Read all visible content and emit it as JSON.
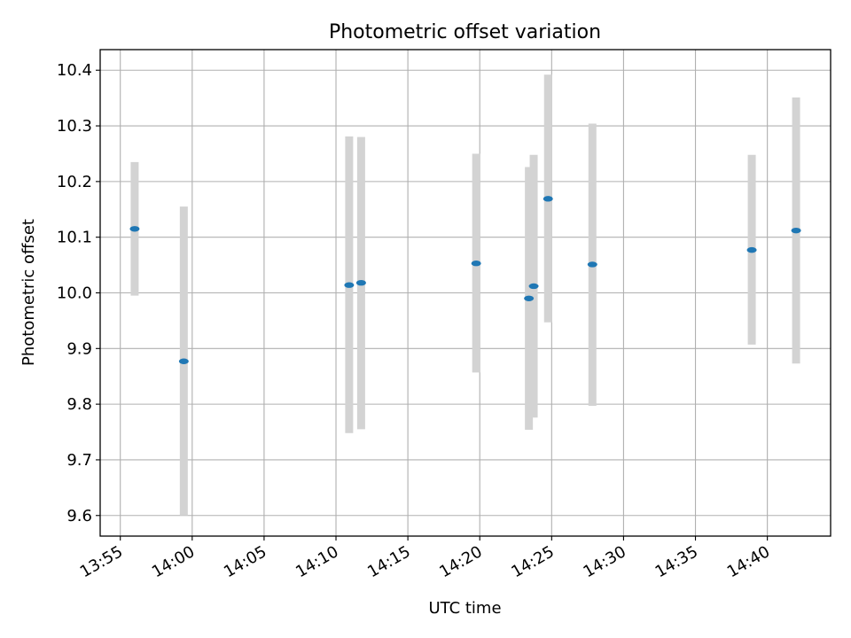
{
  "chart_data": {
    "type": "scatter",
    "title": "Photometric offset variation",
    "xlabel": "UTC time",
    "ylabel": "Photometric offset",
    "x_ticks": [
      "13:55",
      "14:00",
      "14:05",
      "14:10",
      "14:15",
      "14:20",
      "14:25",
      "14:30",
      "14:35",
      "14:40"
    ],
    "x_tick_minutes": [
      0,
      5,
      10,
      15,
      20,
      25,
      30,
      35,
      40,
      45
    ],
    "xlim_minutes": [
      -1.4,
      49.4
    ],
    "y_ticks": [
      "9.6",
      "9.7",
      "9.8",
      "9.9",
      "10.0",
      "10.1",
      "10.2",
      "10.3",
      "10.4"
    ],
    "ylim": [
      9.563,
      10.437
    ],
    "grid": true,
    "marker_color": "#1f77b4",
    "errorbar_color": "#d3d3d3",
    "points": [
      {
        "time": "13:56:00",
        "y": 10.115,
        "ylow": 9.995,
        "yhigh": 10.235
      },
      {
        "time": "13:59:25",
        "y": 9.877,
        "ylow": 9.6,
        "yhigh": 10.155
      },
      {
        "time": "14:10:55",
        "y": 10.014,
        "ylow": 9.748,
        "yhigh": 10.281
      },
      {
        "time": "14:11:45",
        "y": 10.018,
        "ylow": 9.755,
        "yhigh": 10.28
      },
      {
        "time": "14:19:45",
        "y": 10.053,
        "ylow": 9.857,
        "yhigh": 10.25
      },
      {
        "time": "14:23:25",
        "y": 9.99,
        "ylow": 9.754,
        "yhigh": 10.226
      },
      {
        "time": "14:23:45",
        "y": 10.012,
        "ylow": 9.776,
        "yhigh": 10.248
      },
      {
        "time": "14:24:45",
        "y": 10.169,
        "ylow": 9.947,
        "yhigh": 10.392
      },
      {
        "time": "14:27:50",
        "y": 10.051,
        "ylow": 9.797,
        "yhigh": 10.304
      },
      {
        "time": "14:38:55",
        "y": 10.077,
        "ylow": 9.907,
        "yhigh": 10.248
      },
      {
        "time": "14:42:00",
        "y": 10.112,
        "ylow": 9.873,
        "yhigh": 10.351
      }
    ]
  }
}
